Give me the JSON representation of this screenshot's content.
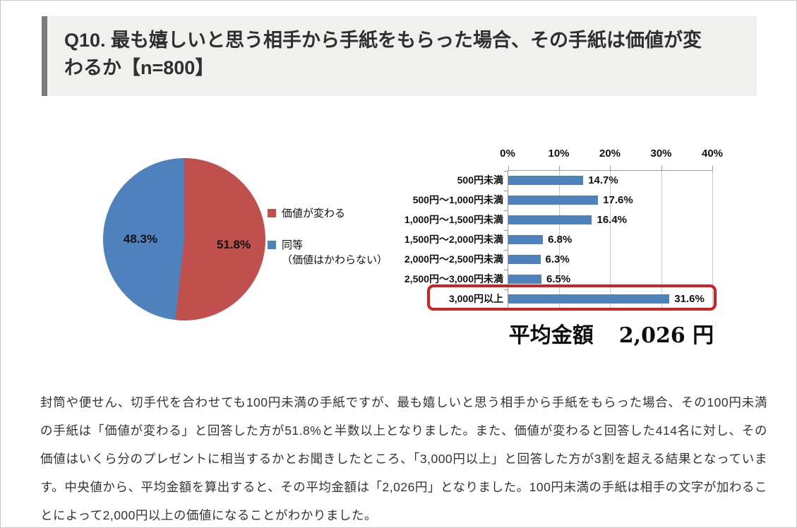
{
  "page": {
    "background": "#ffffff",
    "border_color": "#c9c9c9"
  },
  "header": {
    "title": "Q10. 最も嬉しいと思う相手から手紙をもらった場合、その手紙は価値が変わるか【n=800】",
    "background": "#f0f0ef",
    "accent_bar_color": "#7b7b7b"
  },
  "chart_data": [
    {
      "type": "pie",
      "title": "",
      "slices": [
        {
          "label": "価値が変わる",
          "value": 51.8,
          "display": "51.8%",
          "color": "#c0504d"
        },
        {
          "label": "同等（価値はかわらない）",
          "value": 48.3,
          "display": "48.3%",
          "color": "#4f81bd"
        }
      ],
      "start_angle_deg": 0,
      "direction": "clockwise",
      "legend_position": "right",
      "legend": [
        {
          "label": "価値が変わる",
          "color": "#c0504d"
        },
        {
          "label": "同等",
          "label_line2": "（価値はかわらない）",
          "color": "#4f81bd"
        }
      ]
    },
    {
      "type": "bar",
      "orientation": "horizontal",
      "categories": [
        "500円未満",
        "500円～1,000円未満",
        "1,000円～1,500円未満",
        "1,500円～2,000円未満",
        "2,000円～2,500円未満",
        "2,500円～3,000円未満",
        "3,000円以上"
      ],
      "values": [
        14.7,
        17.6,
        16.4,
        6.8,
        6.3,
        6.5,
        31.6
      ],
      "value_labels": [
        "14.7%",
        "17.6%",
        "16.4%",
        "6.8%",
        "6.3%",
        "6.5%",
        "31.6%"
      ],
      "axis": {
        "min": 0,
        "max": 40,
        "ticks": [
          "0%",
          "10%",
          "20%",
          "30%",
          "40%"
        ],
        "position": "top"
      },
      "bar_color": "#4f81bd",
      "gridlines": true,
      "gridline_color": "#c9c9c9",
      "highlight": {
        "category_index": 6,
        "box_color": "#cc2222"
      }
    }
  ],
  "summary": {
    "average_label": "平均金額",
    "average_value": "2,026 円"
  },
  "body_text": "封筒や便せん、切手代を合わせても100円未満の手紙ですが、最も嬉しいと思う相手から手紙をもらった場合、その100円未満の手紙は「価値が変わる」と回答した方が51.8%と半数以上となりました。また、価値が変わると回答した414名に対し、その価値はいくら分のプレゼントに相当するかとお聞きしたところ、「3,000円以上」と回答した方が3割を超える結果となっています。中央値から、平均金額を算出すると、その平均金額は「2,026円」となりました。100円未満の手紙は相手の文字が加わることによって2,000円以上の価値になることがわかりました。"
}
